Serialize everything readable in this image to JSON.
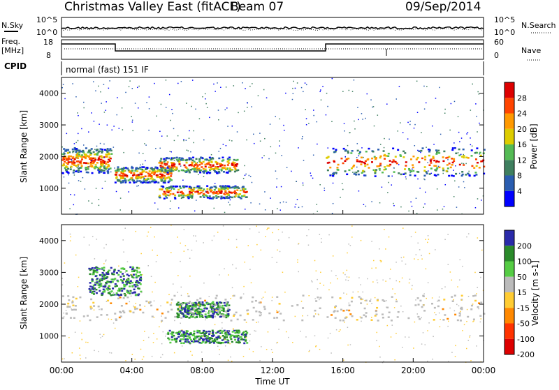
{
  "header": {
    "station": "Christmas Valley East (fitACF)",
    "beam": "Beam 07",
    "date": "09/Sep/2014"
  },
  "params_panel": {
    "nsky_label": "N.Sky",
    "nsearch_label": "N.Search",
    "noise_ticks": [
      "10^5",
      "10^0"
    ],
    "freq_label": "Freq.",
    "freq_unit": "[MHz]",
    "freq_ticks": [
      "18",
      "8"
    ],
    "nave_label": "Nave",
    "nave_ticks": [
      "60",
      "0"
    ],
    "cpid_label": "CPID",
    "cpid_value": "normal (fast) 151 IF"
  },
  "colors": {
    "power_scale": [
      "#0000ff",
      "#2a5db0",
      "#3f7f5f",
      "#55bb55",
      "#ddcc00",
      "#ff9900",
      "#ff4400",
      "#dd0000"
    ],
    "velocity_scale": [
      "#2a2aaa",
      "#2a8a2a",
      "#55cc44",
      "#bbbbbb",
      "#ffcc33",
      "#ff8800",
      "#ff3300",
      "#dd0000"
    ]
  },
  "chart_data": [
    {
      "type": "heatmap",
      "ylabel": "Slant Range [km]",
      "xlabel": "Time UT",
      "x_ticks": [
        "00:00",
        "04:00",
        "08:00",
        "12:00",
        "16:00",
        "20:00",
        "00:00"
      ],
      "y_ticks": [
        1000,
        2000,
        3000,
        4000
      ],
      "ylim": [
        180,
        4500
      ],
      "colorbar": {
        "label": "Power [dB]",
        "ticks": [
          "4",
          "8",
          "12",
          "16",
          "20",
          "24",
          "28"
        ]
      },
      "regions": [
        {
          "t": [
            0.0,
            2.8
          ],
          "r": [
            1500,
            2300
          ],
          "value": "strong"
        },
        {
          "t": [
            3.0,
            6.2
          ],
          "r": [
            1200,
            1700
          ],
          "value": "strong"
        },
        {
          "t": [
            5.5,
            10.5
          ],
          "r": [
            700,
            1100
          ],
          "value": "strong"
        },
        {
          "t": [
            5.5,
            10.0
          ],
          "r": [
            1500,
            2000
          ],
          "value": "strong"
        },
        {
          "t": [
            15.0,
            24.0
          ],
          "r": [
            1400,
            2300
          ],
          "value": "strong"
        }
      ]
    },
    {
      "type": "heatmap",
      "ylabel": "Slant Range [km]",
      "xlabel": "Time UT",
      "x_ticks": [
        "00:00",
        "04:00",
        "08:00",
        "12:00",
        "16:00",
        "20:00",
        "00:00"
      ],
      "y_ticks": [
        1000,
        2000,
        3000,
        4000
      ],
      "ylim": [
        180,
        4500
      ],
      "colorbar": {
        "label": "Velocity [m s-1]",
        "ticks": [
          "200",
          "100",
          "50",
          "15",
          "-15",
          "-50",
          "-100",
          "-200"
        ]
      },
      "regions": [
        {
          "t": [
            1.5,
            4.5
          ],
          "r": [
            2300,
            3200
          ],
          "value": "positive"
        },
        {
          "t": [
            6.5,
            9.5
          ],
          "r": [
            1600,
            2100
          ],
          "value": "positive"
        },
        {
          "t": [
            6.0,
            10.5
          ],
          "r": [
            800,
            1200
          ],
          "value": "positive"
        },
        {
          "t": [
            0.0,
            24.0
          ],
          "r": [
            1500,
            2300
          ],
          "value": "ground"
        }
      ]
    }
  ]
}
